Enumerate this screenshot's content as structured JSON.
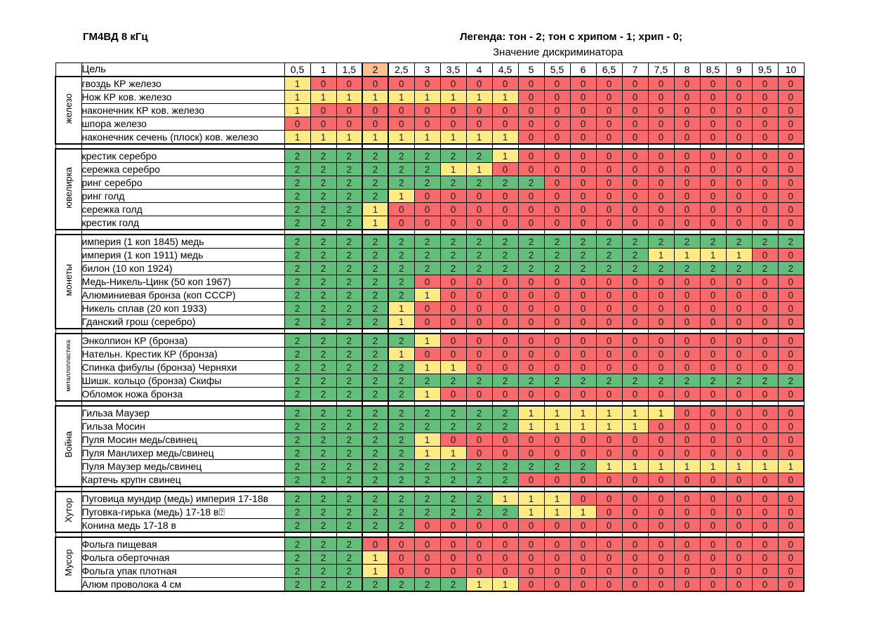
{
  "page": {
    "title": "ГМ4ВД 8 кГц",
    "legend": "Легенда: тон - 2; тон с хрипом - 1; хрип - 0;",
    "legend_sub": "Значение дискриминатора"
  },
  "chart_data": {
    "type": "heatmap",
    "title": "ГМ4ВД 8 кГц",
    "legend_map": {
      "2": "тон",
      "1": "тон с хрипом",
      "0": "хрип"
    },
    "columns_axis_label": "Значение дискриминатора",
    "target_header": "Цель",
    "columns": [
      "0,5",
      "1",
      "1,5",
      "2",
      "2,5",
      "3",
      "3,5",
      "4",
      "4,5",
      "5",
      "5,5",
      "6",
      "6,5",
      "7",
      "7,5",
      "8",
      "8,5",
      "9",
      "9,5",
      "10"
    ],
    "highlighted_column": "2",
    "cell_colors": {
      "0": "#F8696B",
      "1": "#FFEB84",
      "2": "#63BE7B"
    },
    "highlight_header_color": "#FABF8F",
    "groups": [
      {
        "label": "железо",
        "rows": [
          {
            "name": "гвоздь КР железо",
            "values": [
              1,
              0,
              0,
              0,
              0,
              0,
              0,
              0,
              0,
              0,
              0,
              0,
              0,
              0,
              0,
              0,
              0,
              0,
              0,
              0
            ]
          },
          {
            "name": "Нож КР ков. железо",
            "values": [
              1,
              1,
              1,
              1,
              1,
              1,
              1,
              1,
              1,
              0,
              0,
              0,
              0,
              0,
              0,
              0,
              0,
              0,
              0,
              0
            ]
          },
          {
            "name": "наконечник КР ков. железо",
            "values": [
              1,
              0,
              0,
              0,
              0,
              0,
              0,
              0,
              0,
              0,
              0,
              0,
              0,
              0,
              0,
              0,
              0,
              0,
              0,
              0
            ]
          },
          {
            "name": "шпора железо",
            "values": [
              0,
              0,
              0,
              0,
              0,
              0,
              0,
              0,
              0,
              0,
              0,
              0,
              0,
              0,
              0,
              0,
              0,
              0,
              0,
              0
            ]
          },
          {
            "name": "наконечник сечень (плоск) ков. железо",
            "values": [
              1,
              1,
              1,
              1,
              1,
              1,
              1,
              1,
              1,
              0,
              0,
              0,
              0,
              0,
              0,
              0,
              0,
              0,
              0,
              0
            ]
          }
        ]
      },
      {
        "label": "ювелирка",
        "rows": [
          {
            "name": "крестик серебро",
            "values": [
              2,
              2,
              2,
              2,
              2,
              2,
              2,
              2,
              1,
              0,
              0,
              0,
              0,
              0,
              0,
              0,
              0,
              0,
              0,
              0
            ]
          },
          {
            "name": "сережка серебро",
            "values": [
              2,
              2,
              2,
              2,
              2,
              2,
              1,
              1,
              0,
              0,
              0,
              0,
              0,
              0,
              0,
              0,
              0,
              0,
              0,
              0
            ]
          },
          {
            "name": "ринг серебро",
            "values": [
              2,
              2,
              2,
              2,
              2,
              2,
              2,
              2,
              2,
              2,
              0,
              0,
              0,
              0,
              0,
              0,
              0,
              0,
              0,
              0
            ]
          },
          {
            "name": "ринг голд",
            "values": [
              2,
              2,
              2,
              2,
              1,
              0,
              0,
              0,
              0,
              0,
              0,
              0,
              0,
              0,
              0,
              0,
              0,
              0,
              0,
              0
            ]
          },
          {
            "name": "сережка голд",
            "values": [
              2,
              2,
              2,
              1,
              0,
              0,
              0,
              0,
              0,
              0,
              0,
              0,
              0,
              0,
              0,
              0,
              0,
              0,
              0,
              0
            ]
          },
          {
            "name": "крестик голд",
            "values": [
              2,
              2,
              2,
              1,
              0,
              0,
              0,
              0,
              0,
              0,
              0,
              0,
              0,
              0,
              0,
              0,
              0,
              0,
              0,
              0
            ]
          }
        ]
      },
      {
        "label": "монеты",
        "rows": [
          {
            "name": "империя (1 коп 1845) медь",
            "values": [
              2,
              2,
              2,
              2,
              2,
              2,
              2,
              2,
              2,
              2,
              2,
              2,
              2,
              2,
              2,
              2,
              2,
              2,
              2,
              2
            ]
          },
          {
            "name": "империя (1 коп 1911) медь",
            "values": [
              2,
              2,
              2,
              2,
              2,
              2,
              2,
              2,
              2,
              2,
              2,
              2,
              2,
              2,
              1,
              1,
              1,
              1,
              0,
              0
            ]
          },
          {
            "name": "билон (10 коп 1924)",
            "values": [
              2,
              2,
              2,
              2,
              2,
              2,
              2,
              2,
              2,
              2,
              2,
              2,
              2,
              2,
              2,
              2,
              2,
              2,
              2,
              2
            ]
          },
          {
            "name": "Медь-Никель-Цинк (50 коп 1967)",
            "values": [
              2,
              2,
              2,
              2,
              2,
              0,
              0,
              0,
              0,
              0,
              0,
              0,
              0,
              0,
              0,
              0,
              0,
              0,
              0,
              0
            ]
          },
          {
            "name": "Алюминиевая бронза (коп СССР)",
            "values": [
              2,
              2,
              2,
              2,
              2,
              1,
              0,
              0,
              0,
              0,
              0,
              0,
              0,
              0,
              0,
              0,
              0,
              0,
              0,
              0
            ]
          },
          {
            "name": "Никель сплав (20 коп 1933)",
            "values": [
              2,
              2,
              2,
              2,
              1,
              0,
              0,
              0,
              0,
              0,
              0,
              0,
              0,
              0,
              0,
              0,
              0,
              0,
              0,
              0
            ]
          },
          {
            "name": "Гданский грош (серебро)",
            "values": [
              2,
              2,
              2,
              2,
              1,
              0,
              0,
              0,
              0,
              0,
              0,
              0,
              0,
              0,
              0,
              0,
              0,
              0,
              0,
              0
            ]
          }
        ]
      },
      {
        "label": "металлопластика",
        "rows": [
          {
            "name": "Энколпион КР (бронза)",
            "values": [
              2,
              2,
              2,
              2,
              2,
              1,
              0,
              0,
              0,
              0,
              0,
              0,
              0,
              0,
              0,
              0,
              0,
              0,
              0,
              0
            ]
          },
          {
            "name": "Нательн. Крестик КР (бронза)",
            "values": [
              2,
              2,
              2,
              2,
              1,
              0,
              0,
              0,
              0,
              0,
              0,
              0,
              0,
              0,
              0,
              0,
              0,
              0,
              0,
              0
            ]
          },
          {
            "name": "Спинка фибулы (бронза) Черняхи",
            "values": [
              2,
              2,
              2,
              2,
              2,
              1,
              1,
              0,
              0,
              0,
              0,
              0,
              0,
              0,
              0,
              0,
              0,
              0,
              0,
              0
            ]
          },
          {
            "name": "Шишк. кольцо (бронза) Скифы",
            "values": [
              2,
              2,
              2,
              2,
              2,
              2,
              2,
              2,
              2,
              2,
              2,
              2,
              2,
              2,
              2,
              2,
              2,
              2,
              2,
              2
            ]
          },
          {
            "name": "Обломок ножа бронза",
            "values": [
              2,
              2,
              2,
              2,
              2,
              1,
              0,
              0,
              0,
              0,
              0,
              0,
              0,
              0,
              0,
              0,
              0,
              0,
              0,
              0
            ]
          }
        ]
      },
      {
        "label": "Война",
        "rows": [
          {
            "name": "Гильза Маузер",
            "values": [
              2,
              2,
              2,
              2,
              2,
              2,
              2,
              2,
              2,
              1,
              1,
              1,
              1,
              1,
              1,
              0,
              0,
              0,
              0,
              0
            ]
          },
          {
            "name": "Гильза Мосин",
            "values": [
              2,
              2,
              2,
              2,
              2,
              2,
              2,
              2,
              2,
              1,
              1,
              1,
              1,
              1,
              0,
              0,
              0,
              0,
              0,
              0
            ]
          },
          {
            "name": "Пуля Мосин медь/свинец",
            "values": [
              2,
              2,
              2,
              2,
              2,
              1,
              0,
              0,
              0,
              0,
              0,
              0,
              0,
              0,
              0,
              0,
              0,
              0,
              0,
              0
            ]
          },
          {
            "name": "Пуля Манлихер медь/свинец",
            "values": [
              2,
              2,
              2,
              2,
              2,
              1,
              1,
              0,
              0,
              0,
              0,
              0,
              0,
              0,
              0,
              0,
              0,
              0,
              0,
              0
            ]
          },
          {
            "name": "Пуля Маузер медь/свинец",
            "values": [
              2,
              2,
              2,
              2,
              2,
              2,
              2,
              2,
              2,
              2,
              2,
              2,
              1,
              1,
              1,
              1,
              1,
              1,
              1,
              1
            ]
          },
          {
            "name": "Картечь крупн свинец",
            "values": [
              2,
              2,
              2,
              2,
              2,
              2,
              2,
              2,
              2,
              0,
              0,
              0,
              0,
              0,
              0,
              0,
              0,
              0,
              0,
              0
            ]
          }
        ]
      },
      {
        "label": "Хутор",
        "rows": [
          {
            "name": "Пуговица мундир (медь) империя 17-18в",
            "values": [
              2,
              2,
              2,
              2,
              2,
              2,
              2,
              2,
              1,
              1,
              1,
              0,
              0,
              0,
              0,
              0,
              0,
              0,
              0,
              0
            ]
          },
          {
            "name": "Пуговка-гирька (медь) 17-18 в⍰",
            "values": [
              2,
              2,
              2,
              2,
              2,
              2,
              2,
              2,
              2,
              1,
              1,
              1,
              0,
              0,
              0,
              0,
              0,
              0,
              0,
              0
            ]
          },
          {
            "name": "Конина медь 17-18 в",
            "values": [
              2,
              2,
              2,
              2,
              2,
              0,
              0,
              0,
              0,
              0,
              0,
              0,
              0,
              0,
              0,
              0,
              0,
              0,
              0,
              0
            ]
          }
        ]
      },
      {
        "label": "Мусор",
        "rows": [
          {
            "name": "Фольга пищевая",
            "values": [
              2,
              2,
              2,
              0,
              0,
              0,
              0,
              0,
              0,
              0,
              0,
              0,
              0,
              0,
              0,
              0,
              0,
              0,
              0,
              0
            ]
          },
          {
            "name": "Фольга оберточная",
            "values": [
              2,
              2,
              2,
              1,
              0,
              0,
              0,
              0,
              0,
              0,
              0,
              0,
              0,
              0,
              0,
              0,
              0,
              0,
              0,
              0
            ]
          },
          {
            "name": "Фольга упак плотная",
            "values": [
              2,
              2,
              2,
              1,
              0,
              0,
              0,
              0,
              0,
              0,
              0,
              0,
              0,
              0,
              0,
              0,
              0,
              0,
              0,
              0
            ]
          },
          {
            "name": "Алюм проволока 4 см",
            "values": [
              2,
              2,
              2,
              2,
              2,
              2,
              2,
              1,
              1,
              0,
              0,
              0,
              0,
              0,
              0,
              0,
              0,
              0,
              0,
              0
            ]
          }
        ]
      }
    ]
  }
}
